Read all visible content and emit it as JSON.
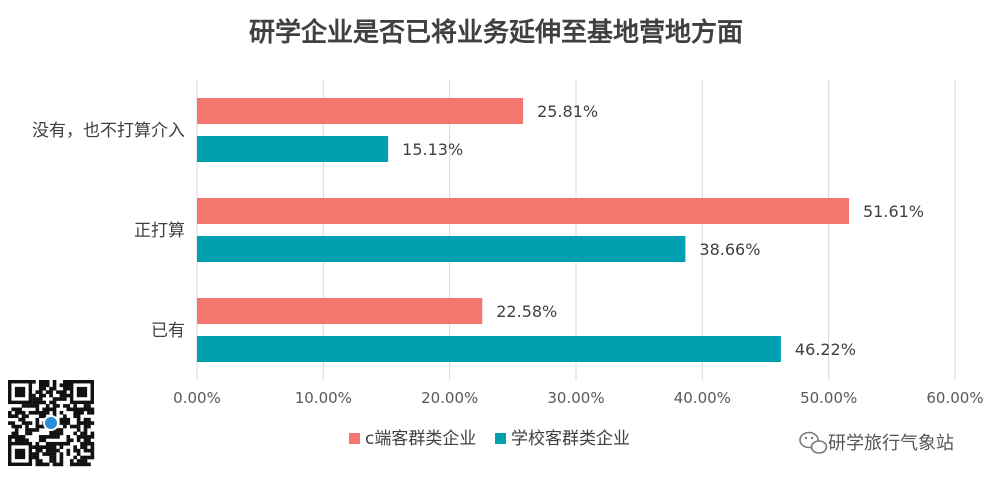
{
  "chart_data": {
    "type": "bar",
    "orientation": "horizontal",
    "title": "研学企业是否已将业务延伸至基地营地方面",
    "categories": [
      "没有，也不打算介入",
      "正打算",
      "已有"
    ],
    "series": [
      {
        "name": "c端客群类企业",
        "color": "#F4776F",
        "values": [
          25.81,
          51.61,
          22.58
        ],
        "labels": [
          "25.81%",
          "51.61%",
          "22.58%"
        ]
      },
      {
        "name": "学校客群类企业",
        "color": "#00A0B0",
        "values": [
          15.13,
          38.66,
          46.22
        ],
        "labels": [
          "15.13%",
          "38.66%",
          "46.22%"
        ]
      }
    ],
    "xlim": [
      0,
      60
    ],
    "xticks": [
      0,
      10,
      20,
      30,
      40,
      50,
      60
    ],
    "xtick_labels": [
      "0.00%",
      "10.00%",
      "20.00%",
      "30.00%",
      "40.00%",
      "50.00%",
      "60.00%"
    ],
    "grid": true,
    "legend_position": "bottom",
    "gridline_color": "#D9D9D9"
  },
  "watermark": {
    "text": "研学旅行气象站",
    "icon": "wechat-icon"
  },
  "qr_code": {
    "icon": "qr-code-icon"
  }
}
